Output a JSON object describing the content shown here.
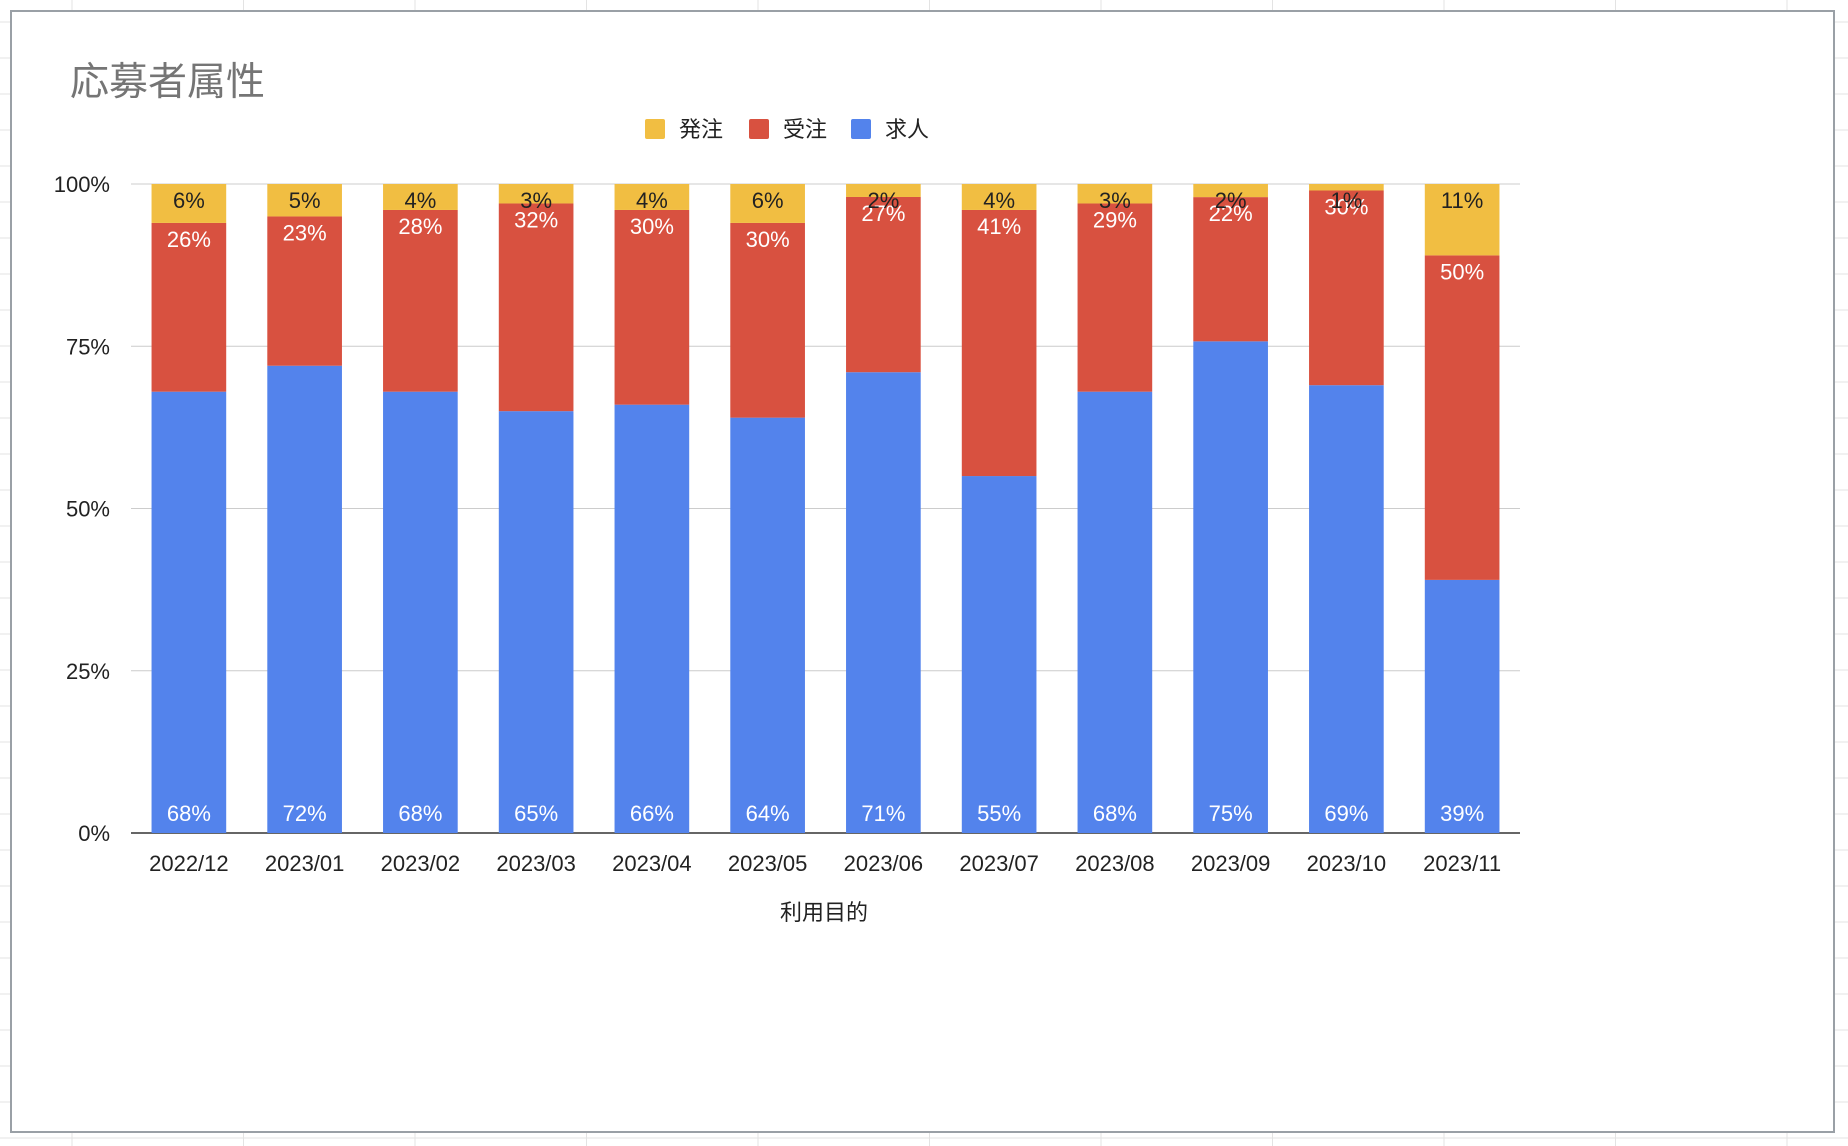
{
  "chart_data": {
    "type": "bar",
    "stacked": true,
    "percent_stacked": true,
    "title": "応募者属性",
    "xlabel": "利用目的",
    "ylabel": "",
    "ylim": [
      0,
      100
    ],
    "y_ticks": [
      "0%",
      "25%",
      "50%",
      "75%",
      "100%"
    ],
    "grid": true,
    "legend_position": "top",
    "legend": [
      "発注",
      "受注",
      "求人"
    ],
    "categories": [
      "2022/12",
      "2023/01",
      "2023/02",
      "2023/03",
      "2023/04",
      "2023/05",
      "2023/06",
      "2023/07",
      "2023/08",
      "2023/09",
      "2023/10",
      "2023/11"
    ],
    "series": [
      {
        "name": "求人",
        "color": "#5383ec",
        "label_color": "#ffffff",
        "values": [
          68,
          72,
          68,
          65,
          66,
          64,
          71,
          55,
          68,
          75,
          69,
          39
        ],
        "labels": [
          "68%",
          "72%",
          "68%",
          "65%",
          "66%",
          "64%",
          "71%",
          "55%",
          "68%",
          "75%",
          "69%",
          "39%"
        ]
      },
      {
        "name": "受注",
        "color": "#d85140",
        "label_color": "#ffffff",
        "values": [
          26,
          23,
          28,
          32,
          30,
          30,
          27,
          41,
          29,
          22,
          30,
          50
        ],
        "labels": [
          "26%",
          "23%",
          "28%",
          "32%",
          "30%",
          "30%",
          "27%",
          "41%",
          "29%",
          "22%",
          "30%",
          "50%"
        ]
      },
      {
        "name": "発注",
        "color": "#f1be42",
        "label_color": "#222222",
        "values": [
          6,
          5,
          4,
          3,
          4,
          6,
          2,
          4,
          3,
          2,
          1,
          11
        ],
        "labels": [
          "6%",
          "5%",
          "4%",
          "3%",
          "4%",
          "6%",
          "2%",
          "4%",
          "3%",
          "2%",
          "1%",
          "11%"
        ]
      }
    ]
  }
}
